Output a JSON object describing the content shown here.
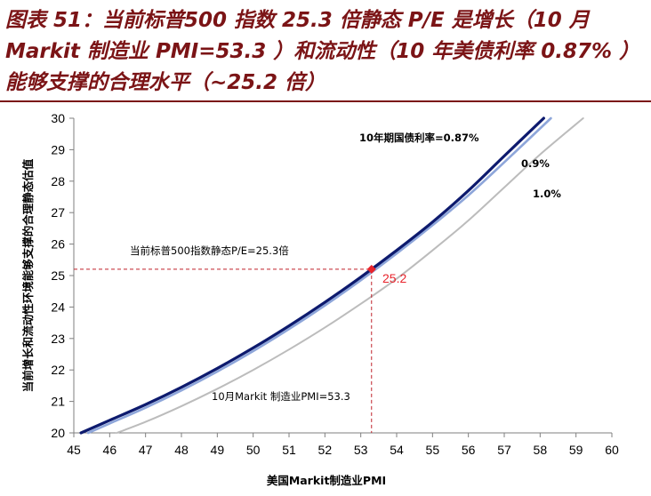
{
  "title": "图表 51：当前标普500 指数 25.3 倍静态 P/E 是增长（10 月 Markit 制造业 PMI=53.3 ）和流动性（10 年美债利率 0.87% ）能够支撑的合理水平（~25.2 倍）",
  "chart_data": {
    "type": "line",
    "xlabel": "美国Markit制造业PMI",
    "ylabel": "当前增长和流动性环境能够支撑的合理静态估值",
    "xlim": [
      45,
      60
    ],
    "ylim": [
      20,
      30
    ],
    "xticks": [
      "45",
      "46",
      "47",
      "48",
      "49",
      "50",
      "51",
      "52",
      "53",
      "54",
      "55",
      "56",
      "57",
      "58",
      "59",
      "60"
    ],
    "yticks": [
      "20",
      "21",
      "22",
      "23",
      "24",
      "25",
      "26",
      "27",
      "28",
      "29",
      "30"
    ],
    "series": [
      {
        "name": "10年期国债利率=0.87%",
        "color": "#0d1a6e",
        "x": [
          45.2,
          46,
          47,
          48,
          49,
          50,
          51,
          52,
          53,
          54,
          55,
          56,
          57,
          58.1
        ],
        "y": [
          20.0,
          20.4,
          20.9,
          21.45,
          22.05,
          22.7,
          23.4,
          24.15,
          24.95,
          25.8,
          26.7,
          27.7,
          28.8,
          30.0
        ]
      },
      {
        "name": "0.9%",
        "color": "#8ea6da",
        "x": [
          45.4,
          46,
          47,
          48,
          49,
          50,
          51,
          52,
          53,
          54,
          55,
          56,
          57,
          58.3
        ],
        "y": [
          20.0,
          20.3,
          20.8,
          21.35,
          21.95,
          22.6,
          23.3,
          24.05,
          24.85,
          25.7,
          26.6,
          27.55,
          28.6,
          30.0
        ]
      },
      {
        "name": "1.0%",
        "color": "#bcbcbc",
        "x": [
          46.2,
          47,
          48,
          49,
          50,
          51,
          52,
          53,
          54,
          55,
          56,
          57,
          58,
          59.2
        ],
        "y": [
          20.0,
          20.35,
          20.85,
          21.4,
          22.0,
          22.65,
          23.35,
          24.1,
          24.9,
          25.8,
          26.75,
          27.8,
          28.85,
          30.0
        ]
      }
    ],
    "marker": {
      "x": 53.3,
      "y": 25.2,
      "label": "25.2",
      "color": "#e8232b"
    },
    "annotations": {
      "pe_note": "当前标普500指数静态P/E=25.3倍",
      "pmi_note": "10月Markit 制造业PMI=53.3"
    }
  }
}
